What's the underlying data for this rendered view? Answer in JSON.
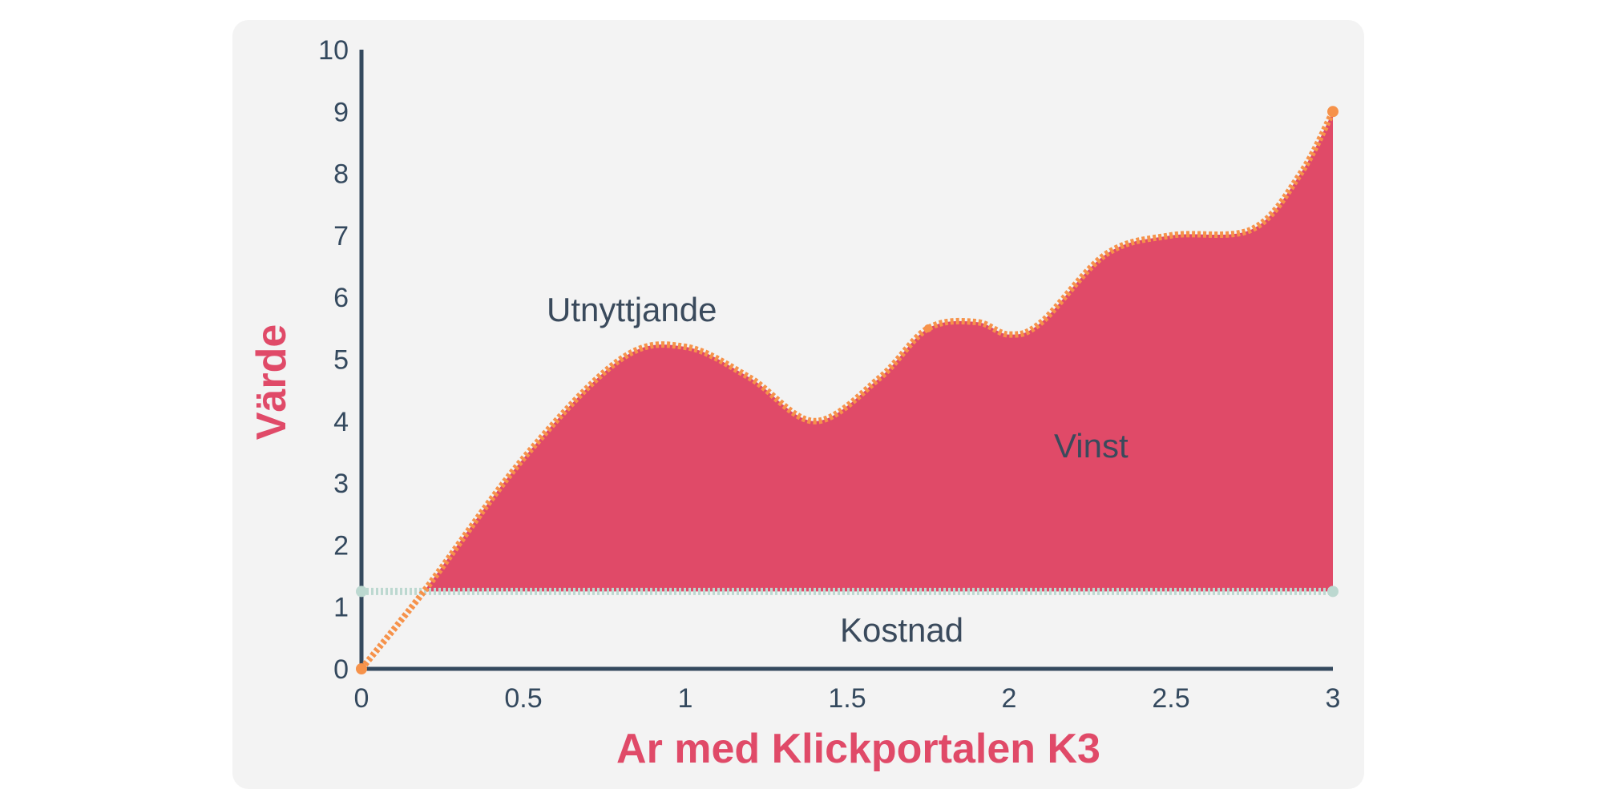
{
  "chart_data": {
    "type": "area",
    "title": "",
    "xlabel": "Ar med Klickportalen K3",
    "ylabel": "Värde",
    "xlim": [
      0,
      3
    ],
    "ylim": [
      0,
      10
    ],
    "xticks": [
      "0",
      "0.5",
      "1",
      "1.5",
      "2",
      "2.5",
      "3"
    ],
    "yticks": [
      "0",
      "1",
      "2",
      "3",
      "4",
      "5",
      "6",
      "7",
      "8",
      "9",
      "10"
    ],
    "grid": false,
    "legend": "none",
    "series": [
      {
        "name": "Utnyttjande",
        "x": [
          0,
          0.2,
          0.5,
          0.8,
          1.0,
          1.2,
          1.4,
          1.6,
          1.75,
          1.9,
          2.0,
          2.1,
          2.3,
          2.5,
          2.75,
          2.9,
          3.0
        ],
        "y": [
          0,
          1.3,
          3.4,
          5.0,
          5.2,
          4.7,
          4.0,
          4.7,
          5.5,
          5.6,
          5.4,
          5.6,
          6.7,
          7.0,
          7.1,
          8.0,
          9.0
        ]
      },
      {
        "name": "Kostnad",
        "x": [
          0,
          3
        ],
        "y": [
          1.25,
          1.25
        ]
      }
    ],
    "annotations": {
      "utnyttjande": "Utnyttjande",
      "vinst": "Vinst",
      "kostnad": "Kostnad"
    },
    "colors": {
      "fill": "#e04a68",
      "utnyttjande_line": "#f6924a",
      "kostnad_line": "#bcd8d0",
      "axis": "#34495e",
      "title": "#e04a68",
      "card": "#f3f3f3"
    }
  }
}
